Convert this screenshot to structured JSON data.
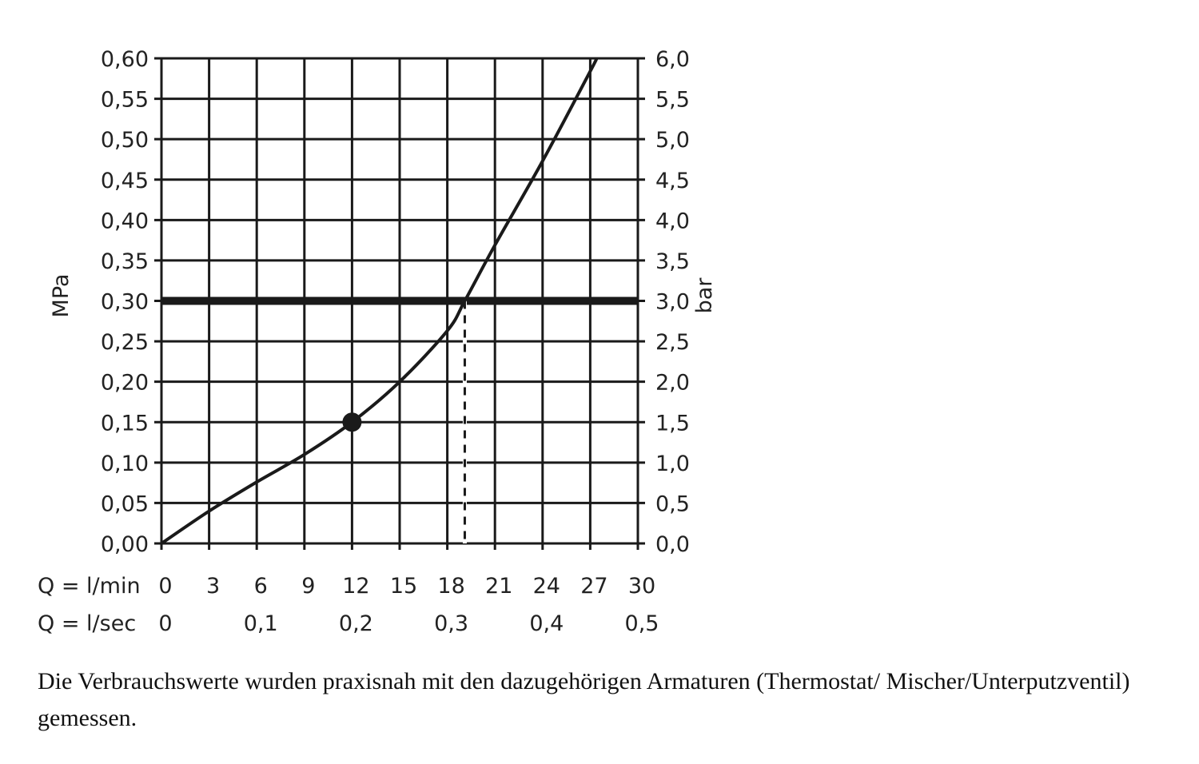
{
  "chart_data": {
    "type": "line",
    "title": "",
    "xlabel": "Q = l/min",
    "xlabel_secondary": "Q = l/sec",
    "ylabel": "MPa",
    "ylabel_right": "bar",
    "xlim": [
      0,
      30
    ],
    "ylim": [
      0,
      0.6
    ],
    "grid": true,
    "x_ticks": [
      "0",
      "3",
      "6",
      "9",
      "12",
      "15",
      "18",
      "21",
      "24",
      "27",
      "30"
    ],
    "x_ticks_values": [
      0,
      3,
      6,
      9,
      12,
      15,
      18,
      21,
      24,
      27,
      30
    ],
    "x2_ticks": [
      "0",
      "0,1",
      "0,2",
      "0,3",
      "0,4",
      "0,5"
    ],
    "x2_ticks_values": [
      0,
      6,
      12,
      18,
      24,
      30
    ],
    "y_ticks": [
      "0,00",
      "0,05",
      "0,10",
      "0,15",
      "0,20",
      "0,25",
      "0,30",
      "0,35",
      "0,40",
      "0,45",
      "0,50",
      "0,55",
      "0,60"
    ],
    "y_ticks_values": [
      0,
      0.05,
      0.1,
      0.15,
      0.2,
      0.25,
      0.3,
      0.35,
      0.4,
      0.45,
      0.5,
      0.55,
      0.6
    ],
    "y_right_ticks": [
      "0,0",
      "0,5",
      "1,0",
      "1,5",
      "2,0",
      "2,5",
      "3,0",
      "3,5",
      "4,0",
      "4,5",
      "5,0",
      "5,5",
      "6,0"
    ],
    "series": [
      {
        "x": [
          0,
          3,
          6,
          9,
          12,
          15,
          18,
          19.1,
          21,
          24,
          27,
          27.4
        ],
        "y": [
          0,
          0.04,
          0.076,
          0.11,
          0.15,
          0.2,
          0.263,
          0.3,
          0.369,
          0.473,
          0.584,
          0.6
        ]
      }
    ],
    "marker_point": {
      "x": 12,
      "y": 0.15
    },
    "reference_line_y": 0.3,
    "reference_dashed_x": 19.1
  },
  "caption": "Die Verbrauchswerte wurden praxisnah mit den dazugehörigen Armaturen (Thermostat/ Mischer/Unterputzventil) gemessen."
}
